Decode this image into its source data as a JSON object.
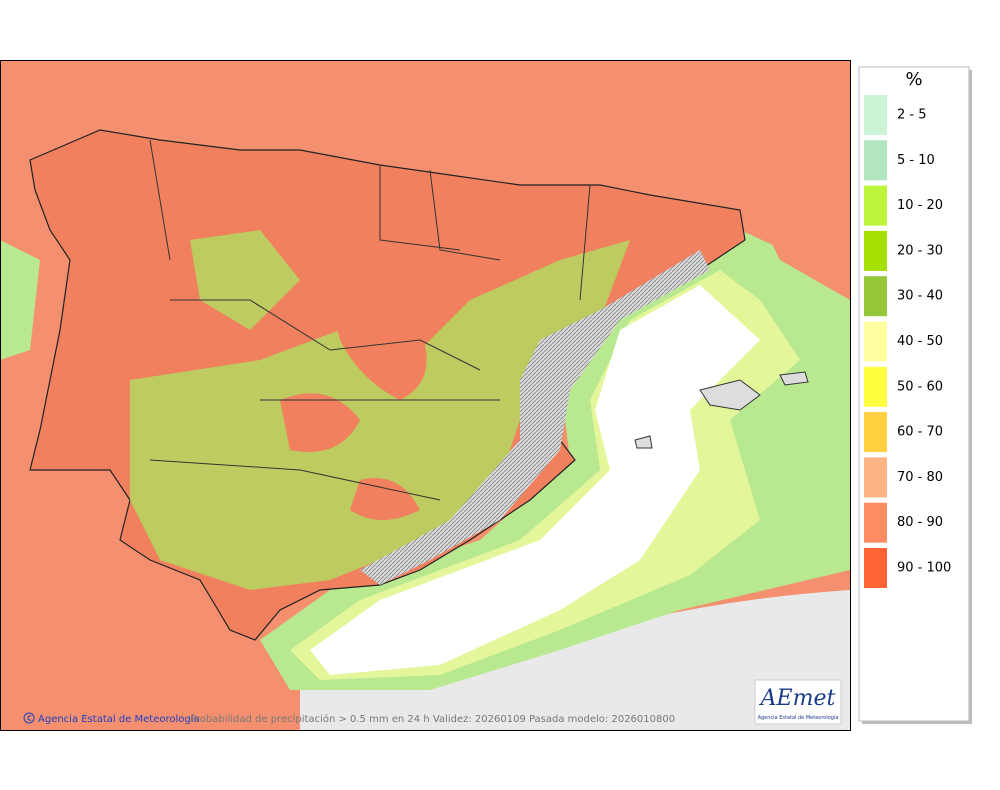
{
  "legend": {
    "title": "%",
    "items": [
      {
        "label": "2 - 5",
        "color": "#cdf3d6"
      },
      {
        "label": "5 - 10",
        "color": "#b2e6be"
      },
      {
        "label": "10 - 20",
        "color": "#bdf53a"
      },
      {
        "label": "20 - 30",
        "color": "#a6e000"
      },
      {
        "label": "30 - 40",
        "color": "#94c83a"
      },
      {
        "label": "40 - 50",
        "color": "#ffffa0"
      },
      {
        "label": "50 - 60",
        "color": "#ffff40"
      },
      {
        "label": "60 - 70",
        "color": "#ffd040"
      },
      {
        "label": "70 - 80",
        "color": "#ffb486"
      },
      {
        "label": "80 - 90",
        "color": "#ff8c62"
      },
      {
        "label": "90 - 100",
        "color": "#ff6434"
      }
    ]
  },
  "footer": {
    "credit": "Agencia Estatal de Meteorología",
    "caption": "Probabilidad de precipitación > 0.5 mm en 24 h Validez: 20260109 Pasada modelo: 2026010800"
  },
  "logo": {
    "name": "AEmet",
    "subtitle": "Agencia Estatal de Meteorología"
  }
}
